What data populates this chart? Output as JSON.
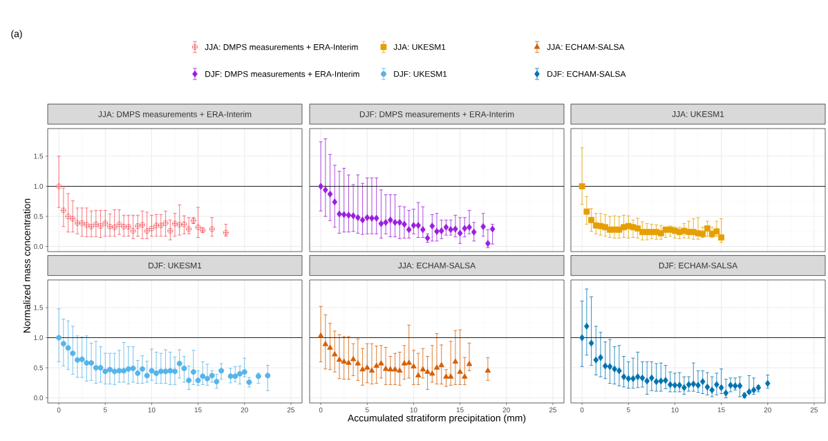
{
  "chart_data": [
    {
      "type": "scatter",
      "title": "JJA: DMPS measurements + ERA-Interim",
      "ylabel": "Normalized mass concentration",
      "annotations": [
        "(a)"
      ],
      "xlim": [
        -1.2,
        26.2
      ],
      "ylim": [
        -0.085,
        1.96
      ],
      "xticks": [
        0,
        5,
        10,
        15,
        20,
        25
      ],
      "yticks": [
        {
          "value": 0,
          "label": "0.0"
        },
        {
          "value": 0.5,
          "label": "0.5"
        },
        {
          "value": 1,
          "label": "1.0"
        },
        {
          "value": 1.5,
          "label": "1.5"
        }
      ],
      "grid": true,
      "legend": "top",
      "tick_labels": "y",
      "marker": "cross",
      "ref_lines": [
        {
          "axis": "y",
          "value": 1,
          "color": "#000000"
        }
      ],
      "series": [
        {
          "name": "JJA: DMPS measurements + ERA-Interim",
          "color": "#f8535b",
          "x": [
            0,
            0.5,
            1,
            1.5,
            2,
            2.5,
            3,
            3.5,
            4,
            4.5,
            5,
            5.5,
            6,
            6.5,
            7,
            7.5,
            8,
            8.5,
            9,
            9.5,
            10,
            10.5,
            11,
            11.5,
            12,
            12.5,
            13,
            13.5,
            14,
            14.5,
            15,
            15.5,
            16.5,
            18
          ],
          "values": [
            1.0,
            0.6,
            0.5,
            0.46,
            0.39,
            0.39,
            0.36,
            0.33,
            0.37,
            0.34,
            0.39,
            0.33,
            0.32,
            0.37,
            0.33,
            0.33,
            0.26,
            0.34,
            0.36,
            0.26,
            0.3,
            0.35,
            0.35,
            0.39,
            0.26,
            0.38,
            0.36,
            0.37,
            0.29,
            0.43,
            0.32,
            0.27,
            0.29,
            0.23
          ],
          "errors": [
            [
              0.65,
              1.5
            ],
            [
              0.33,
              0.97
            ],
            [
              0.24,
              0.88
            ],
            [
              0.24,
              0.76
            ],
            [
              0.21,
              0.64
            ],
            [
              0.17,
              0.64
            ],
            [
              0.16,
              0.64
            ],
            [
              0.16,
              0.59
            ],
            [
              0.16,
              0.6
            ],
            [
              0.15,
              0.6
            ],
            [
              0.17,
              0.6
            ],
            [
              0.17,
              0.54
            ],
            [
              0.17,
              0.61
            ],
            [
              0.2,
              0.61
            ],
            [
              0.17,
              0.52
            ],
            [
              0.17,
              0.52
            ],
            [
              0.13,
              0.52
            ],
            [
              0.17,
              0.52
            ],
            [
              0.13,
              0.59
            ],
            [
              0.13,
              0.57
            ],
            [
              0.17,
              0.52
            ],
            [
              0.17,
              0.53
            ],
            [
              0.17,
              0.53
            ],
            [
              0.17,
              0.59
            ],
            [
              0.11,
              0.44
            ],
            [
              0.17,
              0.55
            ],
            [
              0.19,
              0.69
            ],
            [
              0.21,
              0.51
            ],
            [
              0.21,
              0.48
            ],
            [
              0.38,
              0.48
            ],
            [
              0.15,
              0.65
            ],
            [
              0.24,
              0.31
            ],
            [
              0.17,
              0.48
            ],
            [
              0.17,
              0.37
            ]
          ]
        }
      ]
    },
    {
      "type": "scatter",
      "title": "DJF: DMPS measurements + ERA-Interim",
      "xlim": [
        -1.2,
        26.2
      ],
      "ylim": [
        -0.085,
        1.96
      ],
      "xticks": [
        0,
        5,
        10,
        15,
        20,
        25
      ],
      "yticks": [
        0,
        0.5,
        1,
        1.5
      ],
      "grid": true,
      "legend": "top",
      "tick_labels": false,
      "marker": "diamond",
      "ref_lines": [
        {
          "axis": "y",
          "value": 1,
          "color": "#000000"
        }
      ],
      "series": [
        {
          "name": "DJF: DMPS measurements + ERA-Interim",
          "color": "#9a1ee0",
          "x": [
            0,
            0.5,
            1,
            1.5,
            2,
            2.5,
            3,
            3.5,
            4,
            4.5,
            5,
            5.5,
            6,
            6.5,
            7,
            7.5,
            8,
            8.5,
            9,
            9.5,
            10,
            10.5,
            11,
            11.5,
            12,
            12.5,
            13,
            13.5,
            14,
            14.5,
            15,
            15.5,
            16,
            16.5,
            17.5,
            18,
            18.5
          ],
          "values": [
            1.0,
            0.94,
            0.87,
            0.74,
            0.54,
            0.53,
            0.52,
            0.51,
            0.48,
            0.44,
            0.48,
            0.47,
            0.47,
            0.38,
            0.4,
            0.44,
            0.4,
            0.4,
            0.37,
            0.28,
            0.35,
            0.35,
            0.28,
            0.14,
            0.34,
            0.25,
            0.26,
            0.32,
            0.28,
            0.29,
            0.22,
            0.3,
            0.32,
            0.24,
            0.33,
            0.05,
            0.29
          ],
          "errors": [
            [
              0.59,
              1.74
            ],
            [
              0.5,
              1.79
            ],
            [
              0.43,
              1.53
            ],
            [
              0.32,
              1.35
            ],
            [
              0.22,
              1.25
            ],
            [
              0.24,
              1.3
            ],
            [
              0.24,
              1.19
            ],
            [
              0.25,
              1.03
            ],
            [
              0.22,
              1.19
            ],
            [
              0.2,
              1.05
            ],
            [
              0.21,
              1.14
            ],
            [
              0.21,
              1.14
            ],
            [
              0.21,
              1.14
            ],
            [
              0.14,
              0.94
            ],
            [
              0.21,
              0.86
            ],
            [
              0.16,
              0.86
            ],
            [
              0.16,
              0.86
            ],
            [
              0.13,
              0.67
            ],
            [
              0.14,
              0.66
            ],
            [
              0.14,
              0.6
            ],
            [
              0.21,
              0.62
            ],
            [
              0.15,
              0.73
            ],
            [
              0.15,
              0.66
            ],
            [
              0.07,
              0.21
            ],
            [
              0.09,
              0.53
            ],
            [
              0.09,
              0.55
            ],
            [
              0.13,
              0.44
            ],
            [
              0.19,
              0.44
            ],
            [
              0.19,
              0.44
            ],
            [
              0.16,
              0.52
            ],
            [
              0.05,
              0.48
            ],
            [
              0.16,
              0.48
            ],
            [
              0.21,
              0.6
            ],
            [
              0.09,
              0.4
            ],
            [
              0.17,
              0.55
            ],
            [
              -0.02,
              0.28
            ],
            [
              0.04,
              0.37
            ]
          ]
        }
      ]
    },
    {
      "type": "scatter",
      "title": "JJA: UKESM1",
      "xlim": [
        -1.2,
        26.2
      ],
      "ylim": [
        -0.085,
        1.96
      ],
      "xticks": [
        0,
        5,
        10,
        15,
        20,
        25
      ],
      "yticks": [
        0,
        0.5,
        1,
        1.5
      ],
      "grid": true,
      "legend": "top",
      "tick_labels": false,
      "marker": "square",
      "ref_lines": [
        {
          "axis": "y",
          "value": 1,
          "color": "#000000"
        }
      ],
      "series": [
        {
          "name": "JJA: UKESM1",
          "color": "#e69f00",
          "x": [
            0,
            0.5,
            1,
            1.5,
            2,
            2.5,
            3,
            3.5,
            4,
            4.5,
            5,
            5.5,
            6,
            6.5,
            7,
            7.5,
            8,
            8.5,
            9,
            9.5,
            10,
            10.5,
            11,
            11.5,
            12,
            12.5,
            13,
            13.5,
            14,
            14.5,
            15
          ],
          "values": [
            1.0,
            0.58,
            0.44,
            0.35,
            0.34,
            0.32,
            0.28,
            0.28,
            0.28,
            0.32,
            0.34,
            0.32,
            0.3,
            0.24,
            0.24,
            0.24,
            0.24,
            0.22,
            0.28,
            0.28,
            0.26,
            0.24,
            0.26,
            0.24,
            0.24,
            0.22,
            0.21,
            0.3,
            0.21,
            0.25,
            0.15
          ],
          "errors": [
            [
              0.7,
              1.64
            ],
            [
              0.37,
              0.83
            ],
            [
              0.25,
              0.63
            ],
            [
              0.21,
              0.55
            ],
            [
              0.19,
              0.55
            ],
            [
              0.17,
              0.53
            ],
            [
              0.15,
              0.5
            ],
            [
              0.14,
              0.51
            ],
            [
              0.14,
              0.5
            ],
            [
              0.15,
              0.52
            ],
            [
              0.14,
              0.51
            ],
            [
              0.15,
              0.44
            ],
            [
              0.14,
              0.47
            ],
            [
              0.11,
              0.41
            ],
            [
              0.11,
              0.38
            ],
            [
              0.13,
              0.37
            ],
            [
              0.12,
              0.36
            ],
            [
              0.12,
              0.35
            ],
            [
              0.15,
              0.32
            ],
            [
              0.17,
              0.34
            ],
            [
              0.14,
              0.32
            ],
            [
              0.13,
              0.32
            ],
            [
              0.14,
              0.38
            ],
            [
              0.14,
              0.42
            ],
            [
              0.12,
              0.46
            ],
            [
              0.12,
              0.48
            ],
            [
              0.15,
              0.32
            ],
            [
              0.17,
              0.42
            ],
            [
              0.15,
              0.32
            ],
            [
              0.17,
              0.42
            ],
            [
              0.07,
              0.46
            ]
          ]
        }
      ]
    },
    {
      "type": "scatter",
      "title": "DJF: UKESM1",
      "xlim": [
        -1.2,
        26.2
      ],
      "ylim": [
        -0.085,
        1.96
      ],
      "xticks": [
        0,
        5,
        10,
        15,
        20,
        25
      ],
      "yticks": [
        {
          "value": 0,
          "label": "0.0"
        },
        {
          "value": 0.5,
          "label": "0.5"
        },
        {
          "value": 1,
          "label": "1.0"
        },
        {
          "value": 1.5,
          "label": "1.5"
        }
      ],
      "grid": true,
      "legend": "top",
      "marker": "circle",
      "ref_lines": [
        {
          "axis": "y",
          "value": 1,
          "color": "#000000"
        }
      ],
      "series": [
        {
          "name": "DJF: UKESM1",
          "color": "#56b4e9",
          "x": [
            0,
            0.5,
            1,
            1.5,
            2,
            2.5,
            3,
            3.5,
            4,
            4.5,
            5,
            5.5,
            6,
            6.5,
            7,
            7.5,
            8,
            8.5,
            9,
            9.5,
            10,
            10.5,
            11,
            11.5,
            12,
            12.5,
            13,
            13.5,
            14,
            14.5,
            15,
            15.5,
            16,
            16.5,
            17,
            17.5,
            18.5,
            19,
            19.5,
            20,
            20.5,
            21.5,
            22.5
          ],
          "values": [
            1.0,
            0.9,
            0.83,
            0.74,
            0.63,
            0.64,
            0.58,
            0.58,
            0.5,
            0.5,
            0.44,
            0.47,
            0.44,
            0.45,
            0.45,
            0.48,
            0.49,
            0.41,
            0.48,
            0.37,
            0.45,
            0.41,
            0.44,
            0.44,
            0.45,
            0.44,
            0.57,
            0.49,
            0.29,
            0.43,
            0.29,
            0.36,
            0.32,
            0.37,
            0.27,
            0.45,
            0.36,
            0.36,
            0.4,
            0.43,
            0.26,
            0.36,
            0.37
          ],
          "errors": [
            [
              0.6,
              1.48
            ],
            [
              0.53,
              1.31
            ],
            [
              0.47,
              1.28
            ],
            [
              0.39,
              1.19
            ],
            [
              0.34,
              1.03
            ],
            [
              0.34,
              1.01
            ],
            [
              0.28,
              1.03
            ],
            [
              0.29,
              0.91
            ],
            [
              0.24,
              0.94
            ],
            [
              0.26,
              0.85
            ],
            [
              0.23,
              0.74
            ],
            [
              0.23,
              0.74
            ],
            [
              0.22,
              0.74
            ],
            [
              0.26,
              0.79
            ],
            [
              0.26,
              0.92
            ],
            [
              0.23,
              0.85
            ],
            [
              0.26,
              0.85
            ],
            [
              0.24,
              0.62
            ],
            [
              0.24,
              0.7
            ],
            [
              0.26,
              0.61
            ],
            [
              0.29,
              0.81
            ],
            [
              0.24,
              0.76
            ],
            [
              0.24,
              0.74
            ],
            [
              0.24,
              0.8
            ],
            [
              0.22,
              0.76
            ],
            [
              0.22,
              0.68
            ],
            [
              0.33,
              0.8
            ],
            [
              0.26,
              0.69
            ],
            [
              0.14,
              0.53
            ],
            [
              0.22,
              0.79
            ],
            [
              0.21,
              0.45
            ],
            [
              0.22,
              0.6
            ],
            [
              0.21,
              0.56
            ],
            [
              0.26,
              0.45
            ],
            [
              0.16,
              0.39
            ],
            [
              0.31,
              0.57
            ],
            [
              0.25,
              0.49
            ],
            [
              0.27,
              0.52
            ],
            [
              0.23,
              0.53
            ],
            [
              0.35,
              0.66
            ],
            [
              0.18,
              0.34
            ],
            [
              0.24,
              0.41
            ],
            [
              0.12,
              0.54
            ]
          ]
        }
      ]
    },
    {
      "type": "scatter",
      "title": "JJA: ECHAM-SALSA",
      "xlabel": "Accumulated stratiform precipitation (mm)",
      "xlim": [
        -1.2,
        26.2
      ],
      "ylim": [
        -0.085,
        1.96
      ],
      "xticks": [
        0,
        5,
        10,
        15,
        20,
        25
      ],
      "yticks": [
        0,
        0.5,
        1,
        1.5
      ],
      "grid": true,
      "legend": "top",
      "tick_labels": "x",
      "marker": "triangle",
      "ref_lines": [
        {
          "axis": "y",
          "value": 1,
          "color": "#000000"
        }
      ],
      "series": [
        {
          "name": "JJA: ECHAM-SALSA",
          "color": "#d55e00",
          "x": [
            0,
            0.5,
            1,
            1.5,
            2,
            2.5,
            3,
            3.5,
            4,
            4.5,
            5,
            5.5,
            6,
            6.5,
            7,
            7.5,
            8,
            8.5,
            9,
            9.5,
            10,
            10.5,
            11,
            11.5,
            12,
            12.5,
            13,
            13.5,
            14,
            14.5,
            15,
            15.5,
            16,
            18
          ],
          "values": [
            1.03,
            0.89,
            0.83,
            0.72,
            0.63,
            0.6,
            0.58,
            0.64,
            0.57,
            0.47,
            0.5,
            0.45,
            0.53,
            0.57,
            0.48,
            0.47,
            0.47,
            0.45,
            0.57,
            0.58,
            0.52,
            0.37,
            0.47,
            0.43,
            0.4,
            0.5,
            0.54,
            0.35,
            0.35,
            0.6,
            0.43,
            0.35,
            0.56,
            0.45
          ],
          "errors": [
            [
              0.6,
              1.52
            ],
            [
              0.48,
              1.38
            ],
            [
              0.47,
              1.24
            ],
            [
              0.43,
              1.11
            ],
            [
              0.32,
              1.05
            ],
            [
              0.31,
              1.02
            ],
            [
              0.31,
              1.02
            ],
            [
              0.37,
              0.9
            ],
            [
              0.29,
              0.98
            ],
            [
              0.21,
              0.82
            ],
            [
              0.25,
              0.9
            ],
            [
              0.23,
              0.9
            ],
            [
              0.24,
              0.86
            ],
            [
              0.33,
              0.87
            ],
            [
              0.22,
              0.84
            ],
            [
              0.22,
              0.69
            ],
            [
              0.22,
              0.74
            ],
            [
              0.21,
              0.76
            ],
            [
              0.31,
              0.87
            ],
            [
              0.33,
              1.21
            ],
            [
              0.22,
              0.79
            ],
            [
              0.22,
              0.74
            ],
            [
              0.33,
              0.82
            ],
            [
              0.14,
              0.69
            ],
            [
              0.26,
              0.87
            ],
            [
              0.23,
              1.07
            ],
            [
              0.23,
              0.88
            ],
            [
              0.19,
              0.47
            ],
            [
              0.21,
              0.94
            ],
            [
              0.22,
              1.12
            ],
            [
              0.22,
              1.13
            ],
            [
              0.22,
              0.67
            ],
            [
              0.45,
              0.91
            ],
            [
              0.29,
              0.67
            ]
          ]
        }
      ]
    },
    {
      "type": "scatter",
      "title": "DJF: ECHAM-SALSA",
      "xlim": [
        -1.2,
        26.2
      ],
      "ylim": [
        -0.085,
        1.96
      ],
      "xticks": [
        0,
        5,
        10,
        15,
        20,
        25
      ],
      "yticks": [
        0,
        0.5,
        1,
        1.5
      ],
      "grid": true,
      "legend": "top",
      "tick_labels": "x",
      "marker": "diamond",
      "ref_lines": [
        {
          "axis": "y",
          "value": 1,
          "color": "#000000"
        }
      ],
      "series": [
        {
          "name": "DJF: ECHAM-SALSA",
          "color": "#0072b2",
          "x": [
            0,
            0.5,
            1,
            1.5,
            2,
            2.5,
            3,
            3.5,
            4,
            4.5,
            5,
            5.5,
            6,
            6.5,
            7,
            7.5,
            8,
            8.5,
            9,
            9.5,
            10,
            10.5,
            11,
            11.5,
            12,
            12.5,
            13,
            13.5,
            14,
            14.5,
            15,
            15.5,
            16,
            16.5,
            17,
            17.5,
            18,
            18.5,
            19,
            20
          ],
          "values": [
            1.0,
            1.19,
            0.91,
            0.63,
            0.67,
            0.53,
            0.52,
            0.48,
            0.45,
            0.35,
            0.32,
            0.32,
            0.35,
            0.33,
            0.28,
            0.33,
            0.27,
            0.28,
            0.29,
            0.22,
            0.21,
            0.21,
            0.17,
            0.22,
            0.23,
            0.21,
            0.27,
            0.18,
            0.13,
            0.22,
            0.17,
            0.08,
            0.21,
            0.2,
            0.2,
            0.04,
            0.1,
            0.13,
            0.17,
            0.24
          ],
          "errors": [
            [
              0.52,
              1.61
            ],
            [
              0.71,
              1.81
            ],
            [
              0.54,
              1.68
            ],
            [
              0.38,
              1.19
            ],
            [
              0.35,
              1.09
            ],
            [
              0.32,
              0.93
            ],
            [
              0.24,
              0.97
            ],
            [
              0.23,
              0.85
            ],
            [
              0.2,
              0.87
            ],
            [
              0.18,
              0.69
            ],
            [
              0.16,
              0.6
            ],
            [
              0.16,
              0.66
            ],
            [
              0.17,
              0.76
            ],
            [
              0.18,
              0.6
            ],
            [
              0.06,
              0.6
            ],
            [
              0.12,
              0.6
            ],
            [
              0.11,
              0.57
            ],
            [
              0.11,
              0.58
            ],
            [
              0.15,
              0.54
            ],
            [
              0.1,
              0.43
            ],
            [
              0.1,
              0.41
            ],
            [
              0.1,
              0.42
            ],
            [
              0.06,
              0.35
            ],
            [
              0.11,
              0.35
            ],
            [
              0.11,
              0.58
            ],
            [
              0.09,
              0.45
            ],
            [
              0.07,
              0.45
            ],
            [
              0.05,
              0.42
            ],
            [
              0.02,
              0.35
            ],
            [
              0.05,
              0.41
            ],
            [
              0.07,
              0.48
            ],
            [
              0.0,
              0.31
            ],
            [
              0.1,
              0.33
            ],
            [
              0.13,
              0.33
            ],
            [
              0.02,
              0.35
            ],
            [
              0.0,
              0.08
            ],
            [
              0.08,
              0.37
            ],
            [
              0.06,
              0.33
            ],
            [
              0.1,
              0.21
            ],
            [
              0.16,
              0.38
            ]
          ]
        }
      ]
    }
  ]
}
